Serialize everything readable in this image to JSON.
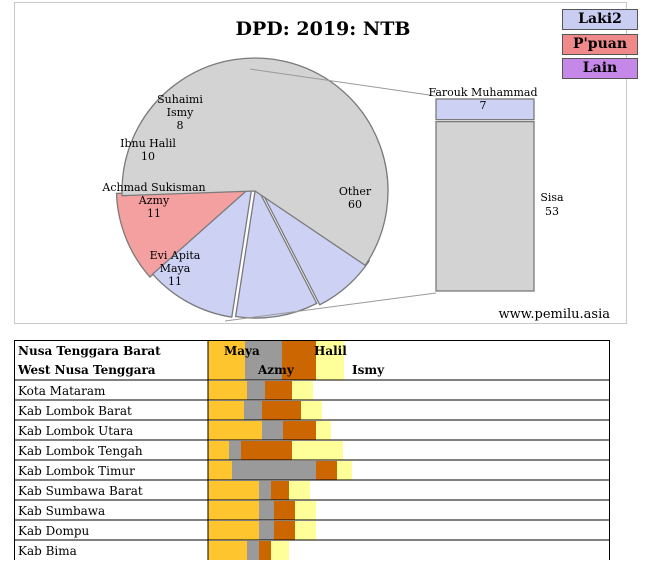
{
  "chart_data": [
    {
      "type": "pie",
      "title": "DPD: 2019: NTB",
      "watermark": "www.pemilu.asia",
      "legend": [
        {
          "label": "Laki2",
          "color": "#c9cdf2"
        },
        {
          "label": "P'puan",
          "color": "#f08a8a"
        },
        {
          "label": "Lain",
          "color": "#c587e8"
        }
      ],
      "slices": [
        {
          "name_lines": [
            "Evi Apita",
            "Maya"
          ],
          "value": 11,
          "color": "#f5a0a0"
        },
        {
          "name_lines": [
            "Achmad Sukisman",
            "Azmy"
          ],
          "value": 11,
          "color": "#cdd2f5"
        },
        {
          "name_lines": [
            "Ibnu Halil"
          ],
          "value": 10,
          "color": "#cdd2f5"
        },
        {
          "name_lines": [
            "Suhaimi",
            "Ismy"
          ],
          "value": 8,
          "color": "#cdd2f5"
        },
        {
          "name_lines": [
            "Other"
          ],
          "value": 60,
          "color": "#d3d3d3"
        }
      ],
      "bar_of_pie": [
        {
          "name_lines": [
            "Farouk Muhammad"
          ],
          "value": 7,
          "color": "#cdd2f5"
        },
        {
          "name_lines": [
            "Sisa"
          ],
          "value": 53,
          "color": "#d3d3d3"
        }
      ]
    },
    {
      "type": "bar",
      "stacked": true,
      "header_lines": [
        "Nusa Tenggara Barat",
        "West Nusa Tenggara"
      ],
      "series": [
        {
          "name": "Maya",
          "color": "#ffc52e"
        },
        {
          "name": "Azmy",
          "color": "#9a9a9a"
        },
        {
          "name": "Halil",
          "color": "#cc6600"
        },
        {
          "name": "Ismy",
          "color": "#ffff99"
        }
      ],
      "header_values": [
        11,
        11,
        10,
        8
      ],
      "rows": [
        {
          "region": "Kota Mataram",
          "values": [
            13,
            6,
            9,
            7
          ]
        },
        {
          "region": "Kab Lombok Barat",
          "values": [
            12,
            6,
            13,
            7
          ]
        },
        {
          "region": "Kab Lombok Utara",
          "values": [
            18,
            7,
            11,
            5
          ]
        },
        {
          "region": "Kab Lombok Tengah",
          "values": [
            7,
            4,
            17,
            17
          ]
        },
        {
          "region": "Kab Lombok Timur",
          "values": [
            8,
            28,
            7,
            5
          ]
        },
        {
          "region": "Kab Sumbawa Barat",
          "values": [
            17,
            4,
            6,
            7
          ]
        },
        {
          "region": "Kab Sumbawa",
          "values": [
            17,
            5,
            7,
            7
          ]
        },
        {
          "region": "Kab Dompu",
          "values": [
            17,
            5,
            7,
            7
          ]
        },
        {
          "region": "Kab Bima",
          "values": [
            13,
            4,
            4,
            6
          ]
        }
      ]
    }
  ]
}
